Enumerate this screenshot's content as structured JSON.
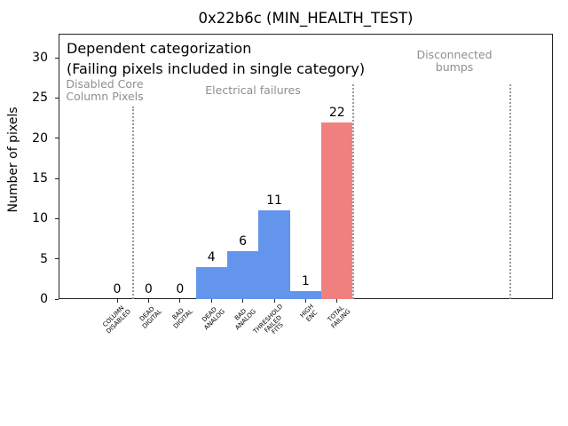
{
  "window": {
    "background": "#ffffff"
  },
  "chart_data": {
    "type": "bar",
    "title": "0x22b6c (MIN_HEALTH_TEST)",
    "xlabel": "",
    "ylabel": "Number of pixels",
    "ylim": [
      0,
      33
    ],
    "yticks": [
      0,
      5,
      10,
      15,
      20,
      25,
      30
    ],
    "grid": false,
    "legend": null,
    "categories": [
      [
        "COLUMN",
        "DISABLED"
      ],
      [
        "DEAD",
        "DIGITAL"
      ],
      [
        "BAD",
        "DIGITAL"
      ],
      [
        "DEAD",
        "ANALOG"
      ],
      [
        "BAD",
        "ANALOG"
      ],
      [
        "THRESHOLD",
        "FAILED",
        "FITS"
      ],
      [
        "HIGH",
        "ENC"
      ],
      [
        "TOTAL",
        "FAILING"
      ]
    ],
    "values": [
      0,
      0,
      0,
      4,
      6,
      11,
      1,
      22
    ],
    "bar_value_labels": [
      "0",
      "0",
      "0",
      "4",
      "6",
      "11",
      "1",
      "22"
    ],
    "bar_colors": [
      "#6495ED",
      "#6495ED",
      "#6495ED",
      "#6495ED",
      "#6495ED",
      "#6495ED",
      "#6495ED",
      "#F08080"
    ],
    "separator_positions_category_units": [
      0.5,
      7.5,
      12.5
    ],
    "colors": {
      "bar_blue": "#6495ED",
      "bar_red": "#F08080",
      "separator_gray": "#999999",
      "annotation_gray": "#8f8f8f",
      "text_black": "#000000",
      "background": "#ffffff"
    },
    "annotations": {
      "dependent_line1": "Dependent categorization",
      "dependent_line2": "(Failing pixels included in single category)",
      "disabled_core_line1": "Disabled Core",
      "disabled_core_line2": "Column Pixels",
      "electrical": "Electrical failures",
      "disconnected_line1": "Disconnected",
      "disconnected_line2": "bumps"
    }
  }
}
